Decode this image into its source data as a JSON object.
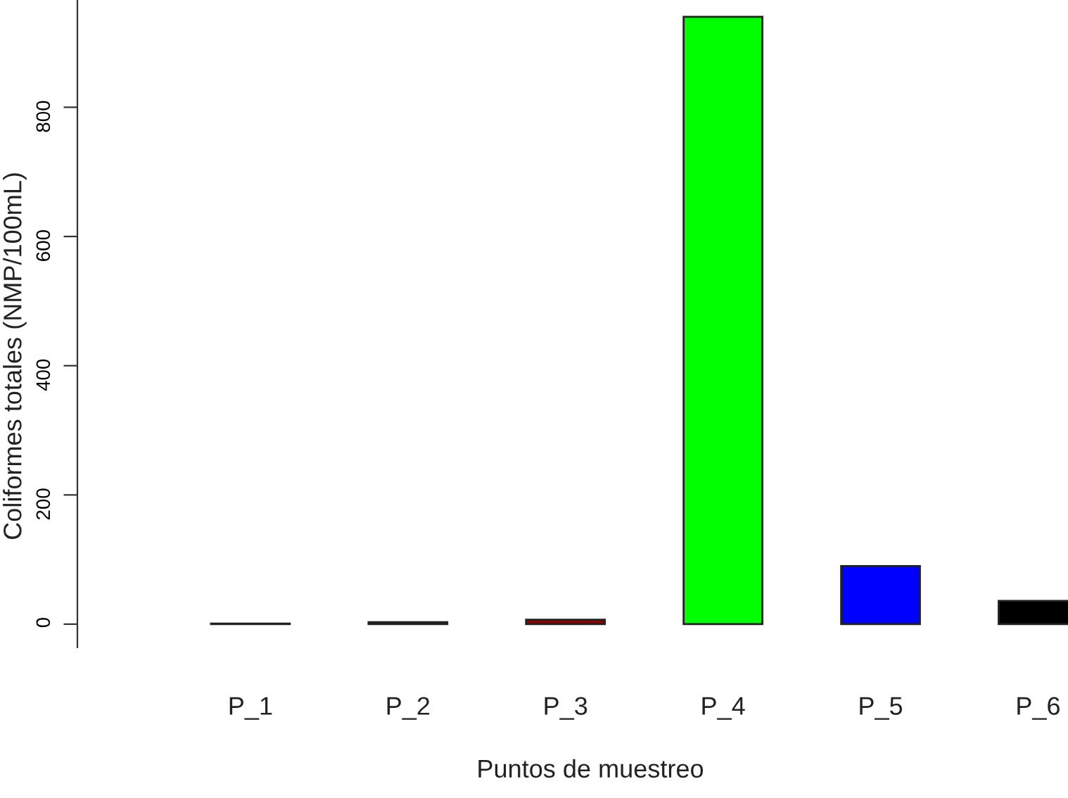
{
  "chart_data": {
    "type": "bar",
    "xlabel": "Puntos de muestreo",
    "ylabel": "Coliformes totales (NMP/100mL)",
    "categories": [
      "P_1",
      "P_2",
      "P_3",
      "P_4",
      "P_5",
      "P_6"
    ],
    "values": [
      1,
      3,
      7,
      940,
      90,
      36
    ],
    "colors": [
      "#bebebe",
      "#000000",
      "#8b0000",
      "#00ff00",
      "#0000ff",
      "#000000"
    ],
    "ylim": [
      -36,
      966
    ],
    "yticks": [
      0,
      200,
      400,
      600,
      800
    ],
    "grid": false,
    "legend": false
  }
}
